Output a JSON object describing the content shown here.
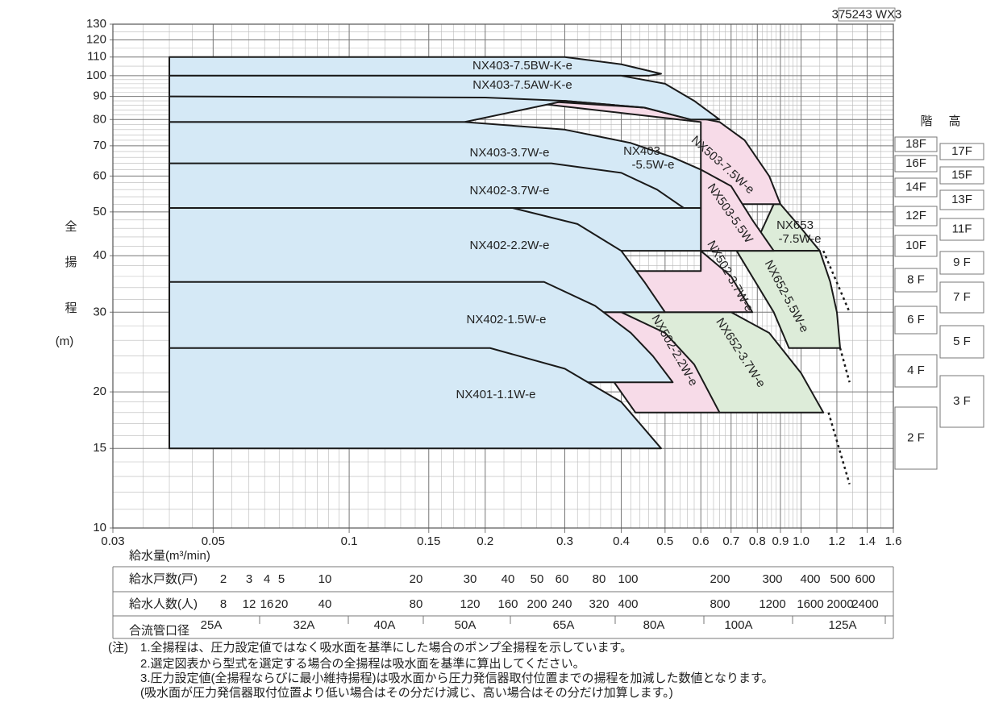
{
  "chart_data": {
    "type": "region",
    "code": "375243 WX3",
    "y_label": [
      "全",
      "揚",
      "程",
      "(m)"
    ],
    "x_label": "給水量(m³/min)",
    "xlim": [
      0.03,
      1.6
    ],
    "ylim": [
      10,
      130
    ],
    "log_x": true,
    "log_y": true,
    "grid": true,
    "xticks": [
      0.03,
      0.05,
      0.1,
      0.15,
      0.2,
      0.3,
      0.4,
      0.5,
      0.6,
      0.7,
      0.8,
      0.9,
      {
        "value": 1,
        "label": "1.0"
      },
      1.2,
      1.4,
      1.6
    ],
    "yticks": [
      10,
      15,
      20,
      30,
      40,
      50,
      60,
      70,
      80,
      90,
      100,
      110,
      120,
      130
    ],
    "xminor": [
      0.035,
      0.04,
      0.045,
      0.055,
      0.06,
      0.065,
      0.07,
      0.075,
      0.08,
      0.085,
      0.09,
      0.095,
      0.11,
      0.12,
      0.13,
      0.14,
      0.16,
      0.17,
      0.18,
      0.19,
      0.22,
      0.24,
      0.26,
      0.28,
      0.32,
      0.34,
      0.36,
      0.38,
      0.42,
      0.44,
      0.46,
      0.48,
      0.52,
      0.54,
      0.56,
      0.58,
      0.62,
      0.64,
      0.66,
      0.68,
      0.72,
      0.74,
      0.76,
      0.78,
      0.82,
      0.84,
      0.86,
      0.88,
      0.92,
      0.94,
      0.96,
      0.98,
      1.1,
      1.3,
      1.5
    ],
    "yminor": [
      11,
      12,
      13,
      14,
      16,
      17,
      18,
      19,
      22,
      24,
      26,
      28,
      32,
      34,
      36,
      38,
      42,
      44,
      46,
      48,
      52,
      54,
      56,
      58,
      62,
      64,
      66,
      68,
      72,
      74,
      76,
      78,
      82,
      84,
      86,
      88,
      92,
      94,
      96,
      98,
      105,
      115,
      125
    ],
    "series": [
      {
        "label": [
          "NX653",
          "-7.5W-e"
        ],
        "fill": "#ddecd9",
        "x": [
          0.87,
          0.9,
          1.0,
          1.1,
          0.78
        ],
        "values": [
          52,
          52,
          46,
          41,
          41
        ]
      },
      {
        "label": [
          "NX652-5.5W-e"
        ],
        "fill": "#ddecd9",
        "x": [
          0.72,
          1.1,
          1.16,
          1.2,
          1.22,
          0.94,
          0.87
        ],
        "values": [
          41,
          41,
          35,
          30,
          25,
          25,
          30
        ]
      },
      {
        "label": [
          "NX652-3.7W-e"
        ],
        "fill": "#ddecd9",
        "x": [
          0.4,
          0.7,
          0.85,
          1.0,
          1.12,
          0.66
        ],
        "values": [
          30,
          30,
          27,
          22,
          18,
          18
        ]
      },
      {
        "label": [
          "NX503-7.5W-e"
        ],
        "fill": "#f7dbe8",
        "x": [
          0.2,
          0.45,
          0.66,
          0.75,
          0.85,
          0.9,
          0.6,
          0.6
        ],
        "values": [
          89.5,
          85,
          79,
          72,
          60,
          52,
          52,
          79
        ]
      },
      {
        "label": [
          "NX503-5.5W"
        ],
        "fill": "#f7dbe8",
        "x": [
          0.6,
          0.7,
          0.78,
          0.87,
          0.6
        ],
        "values": [
          62,
          57,
          48,
          41,
          41
        ]
      },
      {
        "label": [
          "NX502-3.7W-e"
        ],
        "fill": "#f7dbe8",
        "x": [
          0.37,
          0.6,
          0.6,
          0.7,
          0.78,
          0.4
        ],
        "values": [
          37,
          37,
          41,
          36,
          30,
          30
        ]
      },
      {
        "label": [
          "NX502-2.2W-e"
        ],
        "fill": "#f7dbe8",
        "x": [
          0.3,
          0.4,
          0.5,
          0.58,
          0.66,
          0.43
        ],
        "values": [
          30,
          30,
          27,
          23,
          18,
          18
        ]
      },
      {
        "label": [
          "NX403-7.5BW-K-e"
        ],
        "fill": "#d5e9f6",
        "x": [
          0.04,
          0.3,
          0.4,
          0.49,
          0.46,
          0.04
        ],
        "values": [
          110,
          110,
          106,
          101,
          100,
          100
        ]
      },
      {
        "label": [
          "NX403-7.5AW-K-e"
        ],
        "fill": "#d5e9f6",
        "x": [
          0.04,
          0.4,
          0.5,
          0.58,
          0.66,
          0.57,
          0.45,
          0.3,
          0.18,
          0.04
        ],
        "values": [
          100,
          100,
          96,
          88,
          80,
          80,
          85,
          88,
          79,
          79
        ]
      },
      {
        "label": [
          "NX403-3.7W-e"
        ],
        "fill": "#d5e9f6",
        "x": [
          0.04,
          0.18,
          0.3,
          0.42,
          0.52,
          0.6,
          0.6,
          0.04
        ],
        "values": [
          79,
          79,
          76,
          71,
          66,
          62,
          41,
          41
        ]
      },
      {
        "label": [
          "NX402-3.7W-e"
        ],
        "fill": "#d5e9f6",
        "x": [
          0.04,
          0.28,
          0.4,
          0.48,
          0.55,
          0.6,
          0.04
        ],
        "values": [
          64,
          64,
          61,
          56,
          51,
          51,
          51
        ]
      },
      {
        "label": [
          "NX402-2.2W-e"
        ],
        "fill": "#d5e9f6",
        "x": [
          0.04,
          0.23,
          0.32,
          0.4,
          0.45,
          0.5,
          0.04
        ],
        "values": [
          51,
          51,
          47,
          41,
          35,
          30,
          30
        ]
      },
      {
        "label": [
          "NX402-1.5W-e"
        ],
        "fill": "#d5e9f6",
        "x": [
          0.04,
          0.27,
          0.35,
          0.42,
          0.47,
          0.52,
          0.33,
          0.04
        ],
        "values": [
          35,
          35,
          31,
          27,
          24,
          21,
          21,
          21
        ]
      },
      {
        "label": [
          "NX401-1.1W-e"
        ],
        "fill": "#d5e9f6",
        "x": [
          0.04,
          0.205,
          0.3,
          0.4,
          0.49,
          0.04
        ],
        "values": [
          25,
          25,
          22.5,
          19,
          15,
          15
        ]
      },
      {
        "x": [
          0.04,
          0.2,
          0.3,
          0.45,
          0.57
        ],
        "values": [
          90,
          89.5,
          88,
          85,
          80
        ]
      },
      {
        "dash": true,
        "x": [
          1.12,
          1.28
        ],
        "values": [
          41,
          30
        ]
      },
      {
        "dash": true,
        "x": [
          1.22,
          1.28
        ],
        "values": [
          25,
          21
        ]
      },
      {
        "dash": true,
        "x": [
          1.15,
          1.28
        ],
        "values": [
          18,
          12.5
        ]
      }
    ],
    "annotations": [
      [
        "NX403",
        "-5.5W-e"
      ]
    ],
    "flow_table": [
      {
        "label": "給水戸数(戸)",
        "items": [
          "2",
          "3",
          "4",
          "5",
          "10",
          "20",
          "30",
          "40",
          "50",
          "60",
          "80",
          "100",
          "200",
          "300",
          "400",
          "500",
          "600"
        ]
      },
      {
        "label": "給水人数(人)",
        "items": [
          "8",
          "12",
          "16",
          "20",
          "40",
          "80",
          "120",
          "160",
          "200",
          "240",
          "320",
          "400",
          "800",
          "1200",
          "1600",
          "2000",
          "2400"
        ]
      },
      {
        "label": "合流管口径",
        "items": [
          "25A",
          "32A",
          "40A",
          "50A",
          "65A",
          "80A",
          "100A",
          "125A"
        ]
      }
    ],
    "floor_heading": [
      "階",
      "高"
    ],
    "floors_left": [
      "18F",
      "16F",
      "14F",
      "12F",
      "10F",
      "8 F",
      "6 F",
      "4 F",
      "2 F"
    ],
    "floors_right": [
      "17F",
      "15F",
      "13F",
      "11F",
      "9 F",
      "7 F",
      "5 F",
      "3 F"
    ],
    "notes": {
      "mark": "(注)",
      "lines": [
        "1.全揚程は、圧力設定値ではなく吸水面を基準にした場合のポンプ全揚程を示しています。",
        "2.選定図表から型式を選定する場合の全揚程は吸水面を基準に算出してください。",
        "3.圧力設定値(全揚程ならびに最小維持揚程)は吸水面から圧力発信器取付位置までの揚程を加減した数値となります。",
        "(吸水面が圧力発信器取付位置より低い場合はその分だけ減じ、高い場合はその分だけ加算します。)"
      ]
    }
  }
}
